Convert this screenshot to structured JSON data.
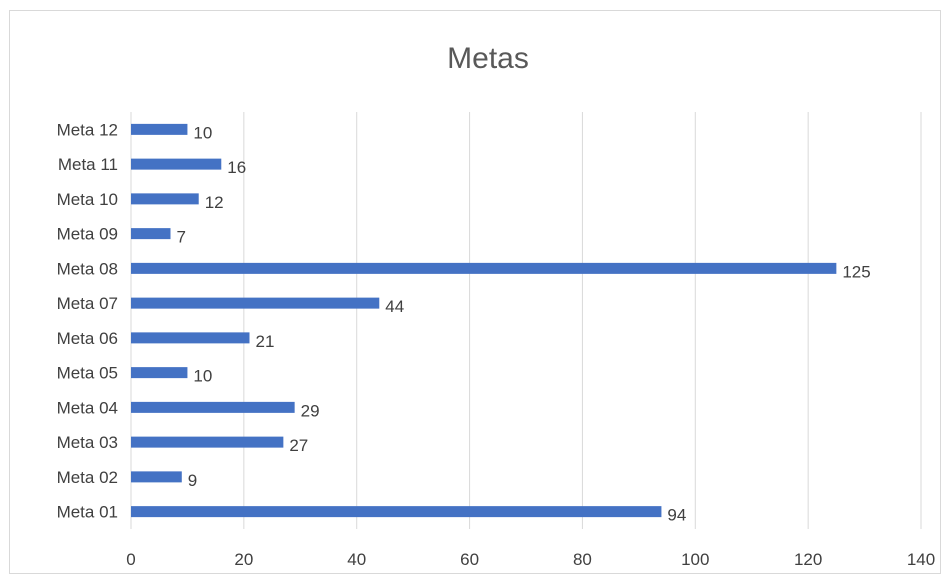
{
  "chart_data": {
    "type": "bar",
    "orientation": "horizontal",
    "title": "Metas",
    "xlabel": "",
    "ylabel": "",
    "categories": [
      "Meta 01",
      "Meta 02",
      "Meta 03",
      "Meta 04",
      "Meta 05",
      "Meta 06",
      "Meta 07",
      "Meta 08",
      "Meta 09",
      "Meta 10",
      "Meta 11",
      "Meta 12"
    ],
    "values": [
      94,
      9,
      27,
      29,
      10,
      21,
      44,
      125,
      7,
      12,
      16,
      10
    ],
    "xlim": [
      0,
      140
    ],
    "x_ticks": [
      0,
      20,
      40,
      60,
      80,
      100,
      120,
      140
    ],
    "grid": true,
    "legend": "none",
    "data_labels": true,
    "bar_color": "#4472C4"
  }
}
